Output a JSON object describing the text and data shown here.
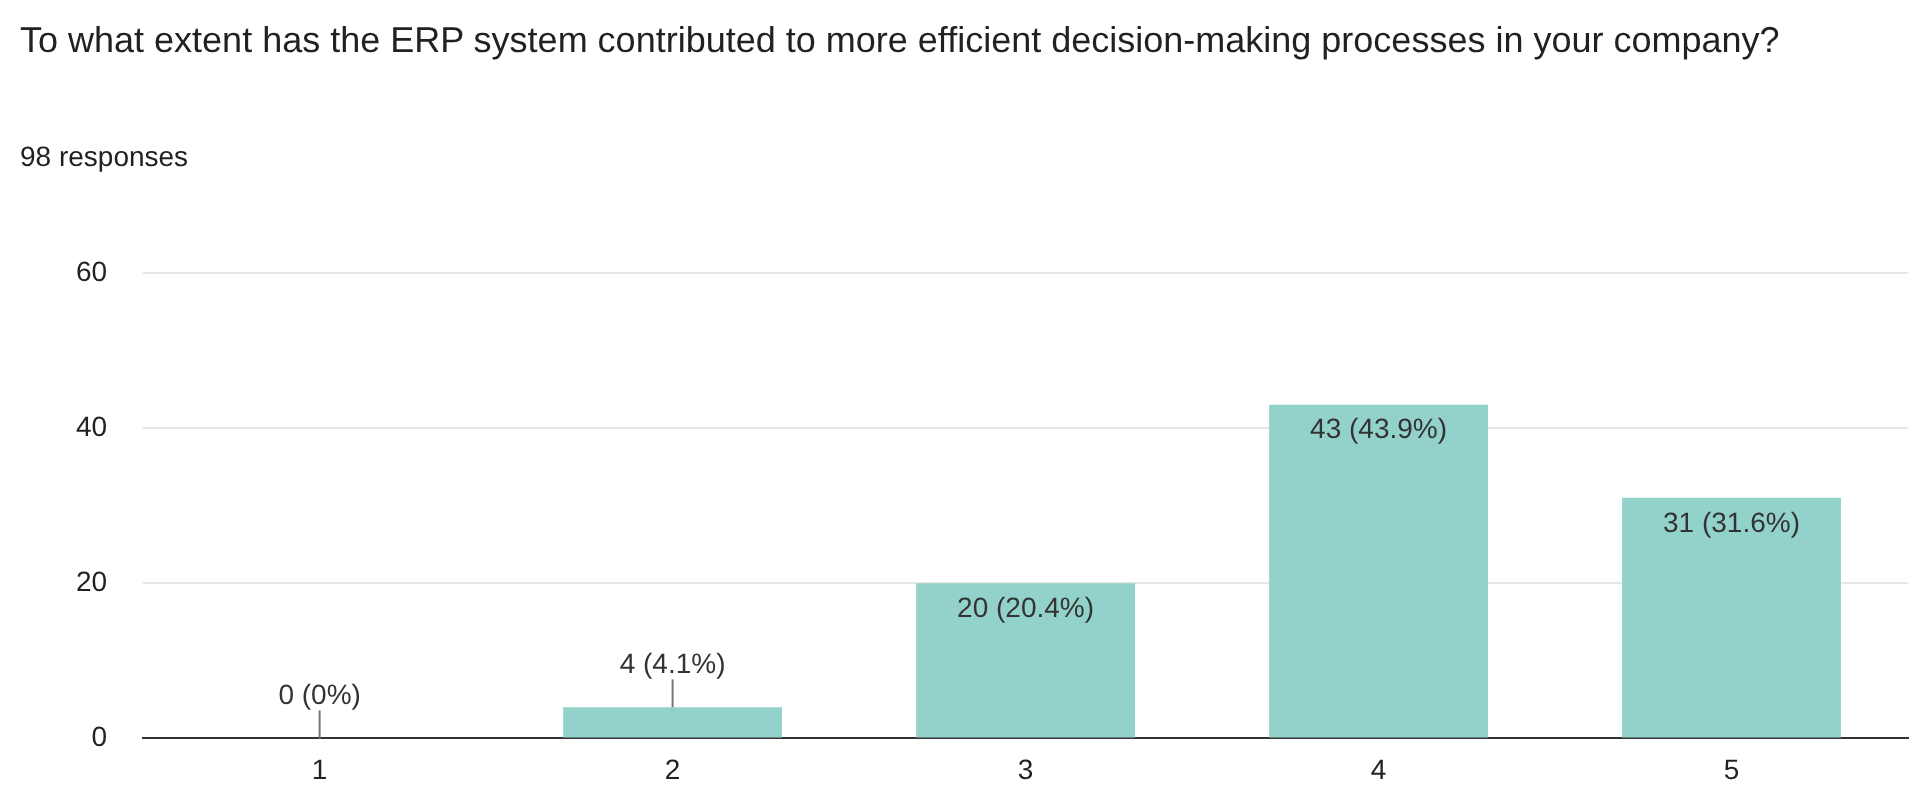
{
  "chart_data": {
    "type": "bar",
    "title": "To what extent has the ERP system contributed to more efficient decision-making processes in your company?",
    "subtitle": "98 responses",
    "categories": [
      "1",
      "2",
      "3",
      "4",
      "5"
    ],
    "values": [
      0,
      4,
      20,
      43,
      31
    ],
    "value_labels": [
      "0 (0%)",
      "4 (4.1%)",
      "20 (20.4%)",
      "43 (43.9%)",
      "31 (31.6%)"
    ],
    "color": "#93d2ca",
    "ylim": [
      0,
      60
    ],
    "yticks": [
      0,
      20,
      40,
      60
    ],
    "grid": "y"
  }
}
